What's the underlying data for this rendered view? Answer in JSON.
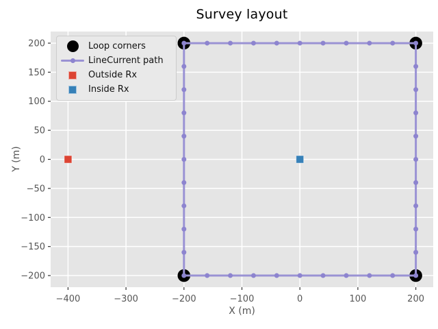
{
  "chart_data": {
    "type": "scatter",
    "title": "Survey layout",
    "xlabel": "X (m)",
    "ylabel": "Y (m)",
    "xlim": [
      -430,
      230
    ],
    "ylim": [
      -220,
      220
    ],
    "x_ticks": [
      -400,
      -300,
      -200,
      -100,
      0,
      100,
      200
    ],
    "y_ticks": [
      -200,
      -150,
      -100,
      -50,
      0,
      50,
      100,
      150,
      200
    ],
    "grid": true,
    "legend_position": "upper left",
    "colors": {
      "plot_background": "#e5e5e5",
      "grid": "#ffffff",
      "tick_mark": "#333333",
      "tick_text": "#555555",
      "loop_corners": "#000000",
      "line_current": "#9a92d4",
      "line_current_marker": "#8d84cf",
      "outside_rx": "#dc4433",
      "inside_rx": "#3781b8"
    },
    "series": [
      {
        "name": "Loop corners",
        "type": "scatter",
        "marker": "circle",
        "color_key": "loop_corners",
        "points": [
          [
            -200,
            200
          ],
          [
            200,
            200
          ],
          [
            200,
            -200
          ],
          [
            -200,
            -200
          ]
        ]
      },
      {
        "name": "LineCurrent path",
        "type": "line",
        "color_key": "line_current",
        "marker_color_key": "line_current_marker",
        "closed": true,
        "vertices": [
          [
            -200,
            200
          ],
          [
            200,
            200
          ],
          [
            200,
            -200
          ],
          [
            -200,
            -200
          ]
        ],
        "marker_spacing_m": 40
      },
      {
        "name": "Outside Rx",
        "type": "scatter",
        "marker": "square",
        "color_key": "outside_rx",
        "points": [
          [
            -400,
            0
          ]
        ]
      },
      {
        "name": "Inside Rx",
        "type": "scatter",
        "marker": "square",
        "color_key": "inside_rx",
        "points": [
          [
            0,
            0
          ]
        ]
      }
    ],
    "legend": {
      "entries": [
        {
          "label": "Loop corners",
          "swatch": "circle",
          "color_key": "loop_corners"
        },
        {
          "label": "LineCurrent path",
          "swatch": "line-dot",
          "color_key": "line_current",
          "dot_color_key": "line_current_marker"
        },
        {
          "label": "Outside Rx",
          "swatch": "square",
          "color_key": "outside_rx"
        },
        {
          "label": "Inside Rx",
          "swatch": "square",
          "color_key": "inside_rx"
        }
      ]
    }
  }
}
